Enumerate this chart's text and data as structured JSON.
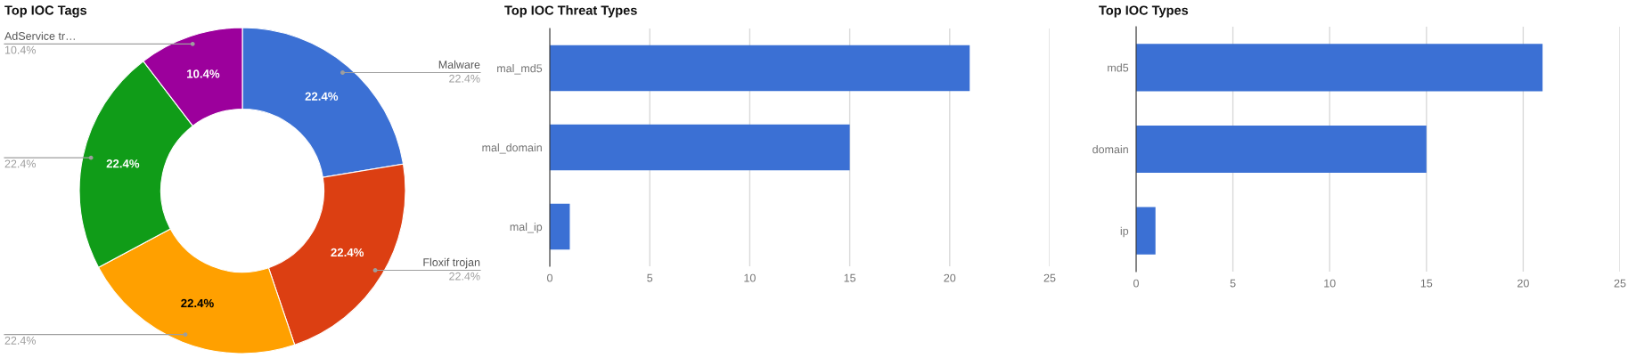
{
  "chart_data": [
    {
      "type": "donut",
      "title": "Top IOC Tags",
      "categories": [
        "Malware",
        "Floxif trojan",
        null,
        null,
        "AdService tr…"
      ],
      "values": [
        22.4,
        22.4,
        22.4,
        22.4,
        10.4
      ],
      "colors": [
        "#3b70d4",
        "#dc3f12",
        "#ffa000",
        "#109c18",
        "#9c009c"
      ],
      "value_labels": [
        "22.4%",
        "22.4%",
        "22.4%",
        "22.4%",
        "10.4%"
      ]
    },
    {
      "type": "bar",
      "orientation": "horizontal",
      "title": "Top IOC Threat Types",
      "categories": [
        "mal_md5",
        "mal_domain",
        "mal_ip"
      ],
      "values": [
        21,
        15,
        1
      ],
      "color": "#3b70d4",
      "xlim": [
        0,
        25
      ],
      "xticks": [
        0,
        5,
        10,
        15,
        20,
        25
      ],
      "grid": "x"
    },
    {
      "type": "bar",
      "orientation": "horizontal",
      "title": "Top IOC Types",
      "categories": [
        "md5",
        "domain",
        "ip"
      ],
      "values": [
        21,
        15,
        1
      ],
      "color": "#3b70d4",
      "xlim": [
        0,
        25
      ],
      "xticks": [
        0,
        5,
        10,
        15,
        20,
        25
      ],
      "grid": "x"
    }
  ]
}
